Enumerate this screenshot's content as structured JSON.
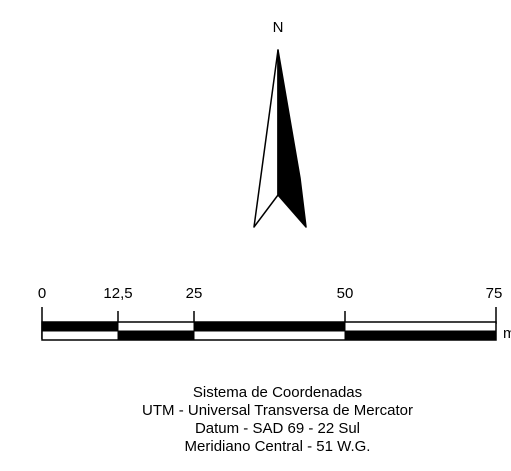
{
  "north_arrow": {
    "label": "N"
  },
  "scale_bar": {
    "ticks": [
      "0",
      "12,5",
      "25",
      "50",
      "75"
    ],
    "unit": "m"
  },
  "caption": {
    "line1": "Sistema de Coordenadas",
    "line2": "UTM - Universal Transversa de Mercator",
    "line3": "Datum - SAD 69 - 22 Sul",
    "line4": "Meridiano Central - 51 W.G."
  },
  "colors": {
    "ink": "#000000",
    "paper": "#ffffff"
  }
}
